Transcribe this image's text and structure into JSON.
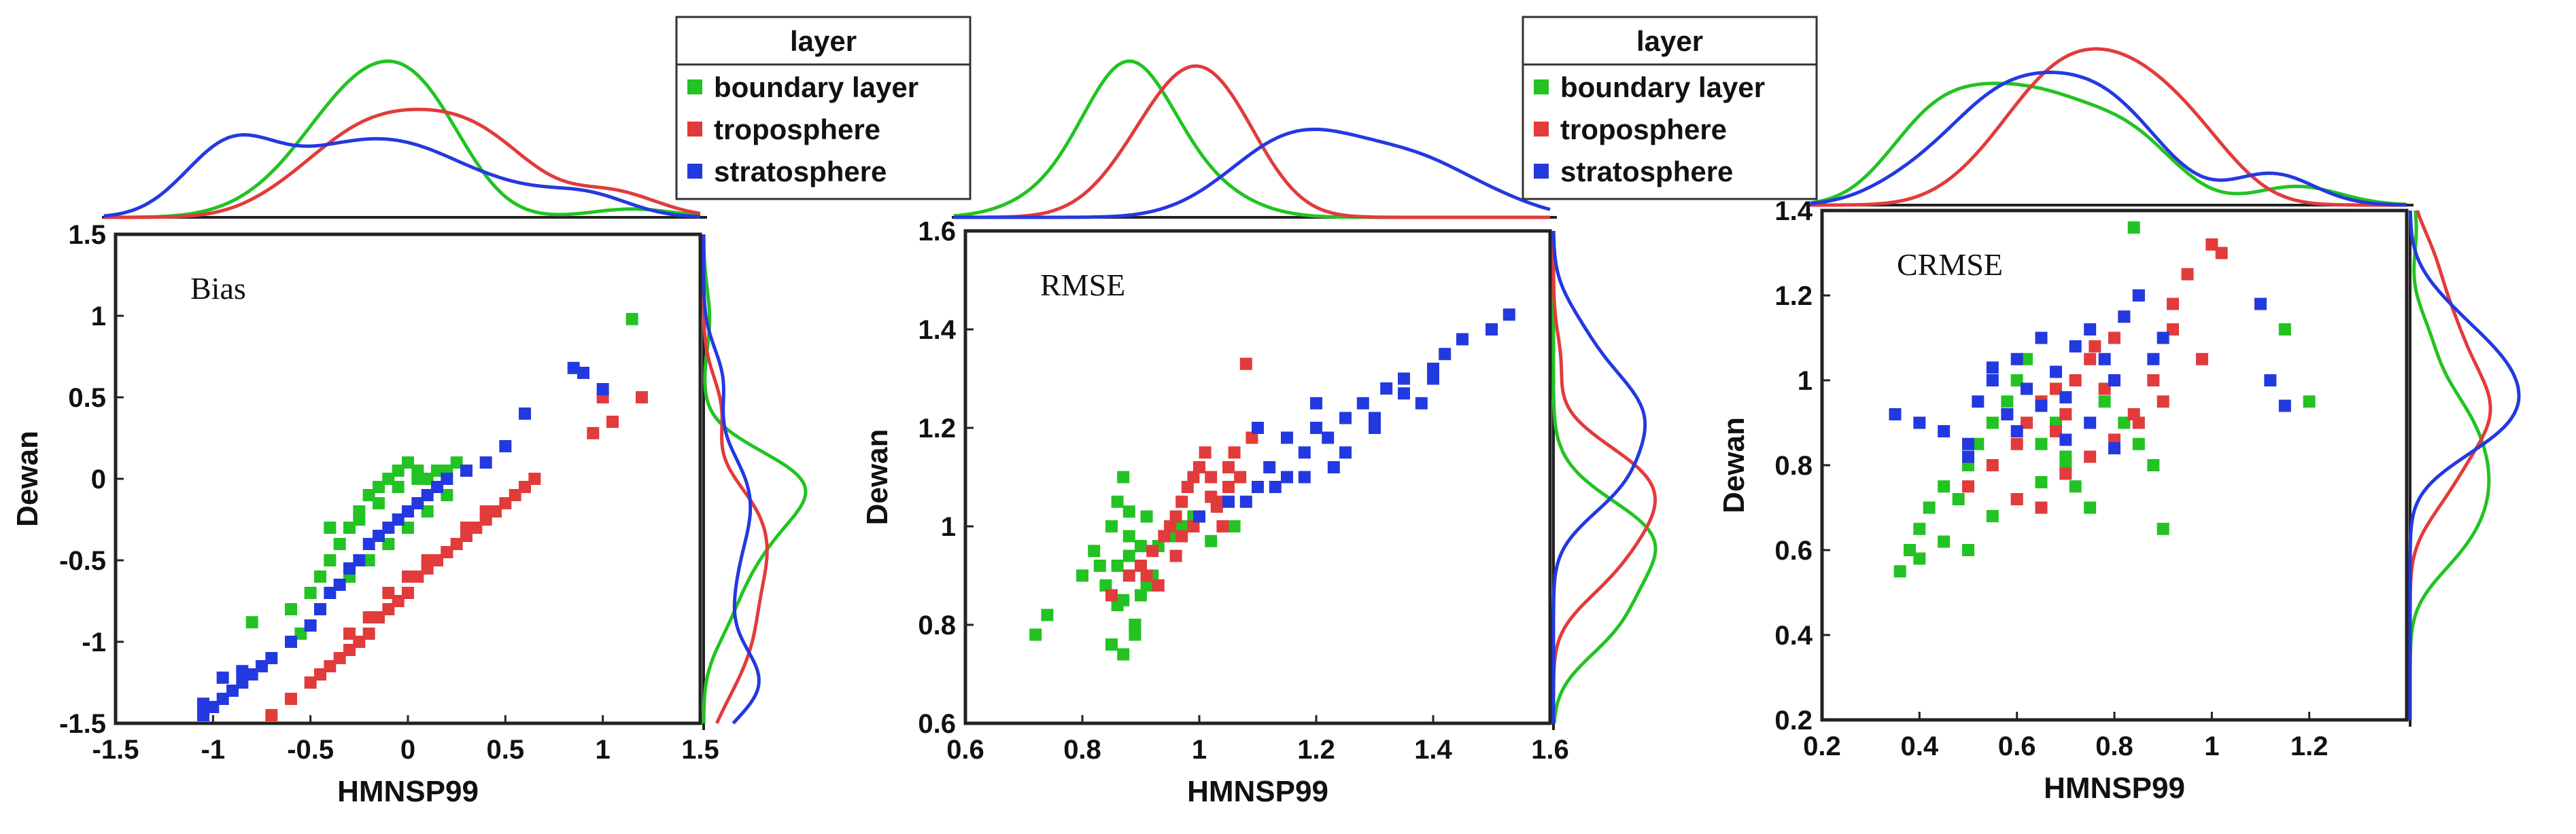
{
  "figure_description_caption": "",
  "colors": {
    "boundary": "#22c322",
    "troposphere": "#e23b3b",
    "stratosphere": "#2339e0"
  },
  "legend": {
    "title": "layer",
    "entries": [
      "boundary layer",
      "troposphere",
      "stratosphere"
    ]
  },
  "chart_data": [
    {
      "type": "scatter",
      "title": "Bias",
      "xlabel": "HMNSP99",
      "ylabel": "Dewan",
      "xlim": [
        -1.5,
        1.5
      ],
      "ylim": [
        -1.5,
        1.5
      ],
      "xticks": [
        -1.5,
        -1,
        -0.5,
        0,
        0.5,
        1,
        1.5
      ],
      "yticks": [
        -1.5,
        -1,
        -0.5,
        0,
        0.5,
        1,
        1.5
      ],
      "xtick_labels": [
        "-1.5",
        "-1",
        "-0.5",
        "0",
        "0.5",
        "1",
        "1.5"
      ],
      "ytick_labels": [
        "-1.5",
        "-1",
        "-0.5",
        "0",
        "0.5",
        "1",
        "1.5"
      ],
      "legend": false,
      "series": [
        {
          "name": "boundary layer",
          "color_key": "boundary",
          "x": [
            -0.6,
            -0.5,
            -0.45,
            -0.4,
            -0.35,
            -0.3,
            -0.25,
            -0.2,
            -0.15,
            -0.1,
            -0.05,
            0,
            0.05,
            0.1,
            0.15,
            0.2,
            0.25,
            -0.3,
            -0.2,
            -0.1,
            0,
            0.1,
            0.2,
            -0.4,
            -0.25,
            -0.15,
            -0.05,
            0.05,
            0.15,
            1.15,
            -0.55,
            -0.8
          ],
          "y": [
            -0.8,
            -0.7,
            -0.6,
            -0.5,
            -0.4,
            -0.3,
            -0.25,
            -0.1,
            -0.05,
            0,
            0.05,
            0.1,
            0.05,
            0,
            -0.05,
            0.05,
            0.1,
            -0.6,
            -0.5,
            -0.4,
            -0.3,
            -0.2,
            -0.1,
            -0.3,
            -0.2,
            -0.15,
            -0.05,
            0,
            0.05,
            0.98,
            -0.95,
            -0.88
          ]
        },
        {
          "name": "troposphere",
          "color_key": "troposphere",
          "x": [
            -0.7,
            -0.6,
            -0.5,
            -0.45,
            -0.4,
            -0.35,
            -0.3,
            -0.25,
            -0.2,
            -0.15,
            -0.1,
            -0.05,
            0,
            0.05,
            0.1,
            0.15,
            0.2,
            0.25,
            0.3,
            0.35,
            0.4,
            0.45,
            0.5,
            0.55,
            0.6,
            0.65,
            -0.3,
            -0.2,
            -0.1,
            0,
            0.1,
            0.2,
            0.3,
            0.4,
            1.0,
            1.05,
            1.2,
            0.95
          ],
          "y": [
            -1.45,
            -1.35,
            -1.25,
            -1.2,
            -1.15,
            -1.1,
            -1.05,
            -1.0,
            -0.95,
            -0.85,
            -0.8,
            -0.75,
            -0.7,
            -0.6,
            -0.55,
            -0.5,
            -0.45,
            -0.4,
            -0.35,
            -0.3,
            -0.25,
            -0.2,
            -0.15,
            -0.1,
            -0.05,
            0.0,
            -0.95,
            -0.85,
            -0.7,
            -0.6,
            -0.5,
            -0.45,
            -0.3,
            -0.2,
            0.5,
            0.35,
            0.5,
            0.28
          ]
        },
        {
          "name": "stratosphere",
          "color_key": "stratosphere",
          "x": [
            -1.05,
            -1.0,
            -0.95,
            -0.9,
            -0.85,
            -0.8,
            -0.75,
            -0.7,
            -0.6,
            -0.5,
            -0.45,
            -0.4,
            -0.35,
            -0.3,
            -0.25,
            -0.2,
            -0.15,
            -0.1,
            -0.05,
            0,
            0.05,
            0.1,
            0.15,
            0.2,
            0.3,
            0.4,
            0.5,
            0.6,
            0.85,
            0.9,
            1.0,
            -1.05,
            -0.95,
            -0.85
          ],
          "y": [
            -1.45,
            -1.4,
            -1.35,
            -1.3,
            -1.25,
            -1.2,
            -1.15,
            -1.1,
            -1.0,
            -0.9,
            -0.8,
            -0.7,
            -0.65,
            -0.55,
            -0.5,
            -0.4,
            -0.35,
            -0.3,
            -0.25,
            -0.2,
            -0.15,
            -0.1,
            -0.05,
            0.0,
            0.05,
            0.1,
            0.2,
            0.4,
            0.68,
            0.65,
            0.55,
            -1.38,
            -1.22,
            -1.18
          ]
        }
      ]
    },
    {
      "type": "scatter",
      "title": "RMSE",
      "xlabel": "HMNSP99",
      "ylabel": "Dewan",
      "xlim": [
        0.6,
        1.6
      ],
      "ylim": [
        0.6,
        1.6
      ],
      "xticks": [
        0.6,
        0.8,
        1.0,
        1.2,
        1.4,
        1.6
      ],
      "yticks": [
        0.6,
        0.8,
        1.0,
        1.2,
        1.4,
        1.6
      ],
      "xtick_labels": [
        "0.6",
        "0.8",
        "1",
        "1.2",
        "1.4",
        "1.6"
      ],
      "ytick_labels": [
        "0.6",
        "0.8",
        "1",
        "1.2",
        "1.4",
        "1.6"
      ],
      "legend": true,
      "series": [
        {
          "name": "boundary layer",
          "color_key": "boundary",
          "x": [
            0.72,
            0.74,
            0.8,
            0.82,
            0.84,
            0.85,
            0.86,
            0.87,
            0.88,
            0.89,
            0.9,
            0.91,
            0.92,
            0.85,
            0.87,
            0.89,
            0.86,
            0.88,
            0.9,
            0.83,
            0.86,
            0.88,
            0.91,
            0.93,
            0.95,
            0.97,
            0.99,
            1.02,
            1.06,
            0.87,
            0.89
          ],
          "y": [
            0.78,
            0.82,
            0.9,
            0.95,
            0.88,
            1.0,
            0.92,
            0.85,
            0.98,
            0.8,
            0.96,
            1.02,
            0.9,
            0.76,
            0.74,
            0.78,
            1.05,
            1.03,
            0.86,
            0.92,
            0.84,
            0.94,
            0.88,
            0.96,
            0.98,
            1.0,
            1.02,
            0.97,
            1.0,
            1.1,
            0.8
          ]
        },
        {
          "name": "troposphere",
          "color_key": "troposphere",
          "x": [
            0.85,
            0.88,
            0.9,
            0.92,
            0.94,
            0.95,
            0.96,
            0.97,
            0.98,
            0.99,
            1.0,
            1.01,
            1.02,
            1.03,
            1.04,
            1.05,
            1.06,
            1.08,
            0.93,
            0.96,
            0.99,
            1.02,
            1.05,
            0.91,
            0.97,
            1.03,
            1.07,
            1.09
          ],
          "y": [
            0.86,
            0.9,
            0.92,
            0.95,
            0.98,
            1.0,
            1.02,
            1.05,
            1.08,
            1.1,
            1.12,
            1.15,
            1.1,
            1.05,
            1.0,
            1.08,
            1.15,
            1.33,
            0.88,
            0.94,
            1.0,
            1.06,
            1.12,
            0.9,
            0.98,
            1.04,
            1.1,
            1.18
          ]
        },
        {
          "name": "stratosphere",
          "color_key": "stratosphere",
          "x": [
            1.0,
            1.05,
            1.1,
            1.12,
            1.15,
            1.18,
            1.2,
            1.22,
            1.25,
            1.28,
            1.3,
            1.32,
            1.35,
            1.38,
            1.4,
            1.42,
            1.45,
            1.5,
            1.53,
            1.1,
            1.15,
            1.2,
            1.25,
            1.3,
            1.35,
            1.4,
            1.08,
            1.13,
            1.18,
            1.23
          ],
          "y": [
            1.02,
            1.05,
            1.08,
            1.12,
            1.1,
            1.15,
            1.2,
            1.18,
            1.22,
            1.25,
            1.2,
            1.28,
            1.3,
            1.25,
            1.32,
            1.35,
            1.38,
            1.4,
            1.43,
            1.2,
            1.18,
            1.25,
            1.15,
            1.22,
            1.27,
            1.3,
            1.05,
            1.08,
            1.1,
            1.12
          ]
        }
      ]
    },
    {
      "type": "scatter",
      "title": "CRMSE",
      "xlabel": "HMNSP99",
      "ylabel": "Dewan",
      "xlim": [
        0.2,
        1.4
      ],
      "ylim": [
        0.2,
        1.4
      ],
      "xticks": [
        0.2,
        0.4,
        0.6,
        0.8,
        1.0,
        1.2
      ],
      "yticks": [
        0.2,
        0.4,
        0.6,
        0.8,
        1.0,
        1.2,
        1.4
      ],
      "xtick_labels": [
        "0.2",
        "0.4",
        "0.6",
        "0.8",
        "1",
        "1.2"
      ],
      "ytick_labels": [
        "0.2",
        "0.4",
        "0.6",
        "0.8",
        "1",
        "1.2",
        "1.4"
      ],
      "legend": true,
      "series": [
        {
          "name": "boundary layer",
          "color_key": "boundary",
          "x": [
            0.36,
            0.38,
            0.4,
            0.42,
            0.45,
            0.48,
            0.5,
            0.52,
            0.55,
            0.58,
            0.6,
            0.62,
            0.65,
            0.68,
            0.7,
            0.72,
            0.75,
            0.78,
            0.8,
            0.82,
            0.85,
            0.88,
            0.9,
            0.5,
            0.55,
            0.6,
            0.65,
            0.7,
            0.45,
            0.4,
            1.15,
            1.2,
            0.84
          ],
          "y": [
            0.55,
            0.6,
            0.65,
            0.7,
            0.75,
            0.72,
            0.8,
            0.85,
            0.9,
            0.95,
            1.0,
            1.05,
            0.85,
            0.9,
            0.8,
            0.75,
            0.7,
            0.95,
            1.1,
            0.9,
            0.85,
            0.8,
            0.65,
            0.6,
            0.68,
            0.72,
            0.76,
            0.82,
            0.62,
            0.58,
            1.12,
            0.95,
            1.36
          ]
        },
        {
          "name": "troposphere",
          "color_key": "troposphere",
          "x": [
            0.5,
            0.55,
            0.6,
            0.62,
            0.65,
            0.68,
            0.7,
            0.72,
            0.75,
            0.78,
            0.8,
            0.82,
            0.85,
            0.88,
            0.9,
            0.92,
            0.95,
            0.98,
            1.0,
            1.02,
            0.65,
            0.7,
            0.75,
            0.8,
            0.85,
            0.6,
            0.68,
            0.76,
            0.84,
            0.92
          ],
          "y": [
            0.75,
            0.8,
            0.85,
            0.9,
            0.95,
            0.88,
            0.92,
            1.0,
            1.05,
            0.98,
            1.1,
            1.15,
            1.2,
            1.0,
            0.95,
            1.18,
            1.25,
            1.05,
            1.32,
            1.3,
            0.7,
            0.78,
            0.82,
            0.86,
            0.9,
            0.72,
            0.98,
            1.08,
            0.92,
            1.12
          ]
        },
        {
          "name": "stratosphere",
          "color_key": "stratosphere",
          "x": [
            0.35,
            0.4,
            0.45,
            0.5,
            0.52,
            0.55,
            0.58,
            0.6,
            0.62,
            0.65,
            0.68,
            0.7,
            0.72,
            0.75,
            0.78,
            0.8,
            0.82,
            0.85,
            0.88,
            0.9,
            1.1,
            1.12,
            1.15,
            0.6,
            0.65,
            0.7,
            0.75,
            0.8,
            0.55,
            0.5
          ],
          "y": [
            0.92,
            0.9,
            0.88,
            0.85,
            0.95,
            1.0,
            0.92,
            1.05,
            0.98,
            1.1,
            1.02,
            0.96,
            1.08,
            1.12,
            1.05,
            1.0,
            1.15,
            1.2,
            1.05,
            1.1,
            1.18,
            1.0,
            0.94,
            0.88,
            0.94,
            0.86,
            0.9,
            0.84,
            1.03,
            0.82
          ]
        }
      ]
    }
  ]
}
